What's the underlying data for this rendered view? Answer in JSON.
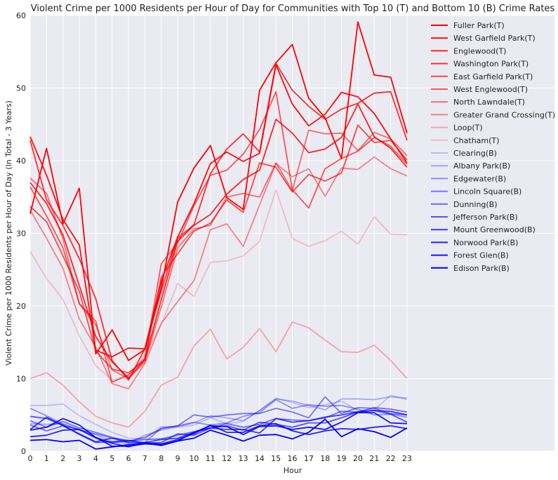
{
  "chart_data": {
    "type": "line",
    "title": "Violent Crime per 1000 Residents per Hour of Day for Communities with Top 10 (T) and Bottom 10 (B) Crime Rates",
    "xlabel": "Hour",
    "ylabel": "Violent Crime per 1000 Residents per Hour of Day (In Total - 3 Years)",
    "xlim": [
      0,
      32
    ],
    "ylim": [
      0,
      60
    ],
    "x": [
      0,
      1,
      2,
      3,
      4,
      5,
      6,
      7,
      8,
      9,
      10,
      11,
      12,
      13,
      14,
      15,
      16,
      17,
      18,
      19,
      20,
      21,
      22,
      23
    ],
    "x_ticks": [
      "0",
      "1",
      "2",
      "3",
      "4",
      "5",
      "6",
      "7",
      "8",
      "9",
      "10",
      "11",
      "12",
      "13",
      "14",
      "15",
      "16",
      "17",
      "18",
      "19",
      "20",
      "21",
      "22",
      "23"
    ],
    "y_ticks": [
      "0",
      "10",
      "20",
      "30",
      "40",
      "50",
      "60"
    ],
    "grid": true,
    "legend_position": "top-right",
    "series": [
      {
        "name": "Fuller Park(T)",
        "color": "#ff0000",
        "opacity": 1.0,
        "values": [
          32.7,
          41.7,
          31.3,
          36.2,
          13.4,
          16.7,
          12.5,
          14.0,
          22.5,
          34.3,
          39.0,
          42.1,
          34.9,
          33.3,
          49.7,
          53.5,
          56.0,
          48.6,
          45.9,
          40.3,
          59.1,
          51.8,
          51.5,
          43.8
        ]
      },
      {
        "name": "West Garfield Park(T)",
        "color": "#ff0000",
        "opacity": 0.95,
        "values": [
          43.3,
          38.0,
          31.9,
          28.4,
          13.9,
          13.0,
          14.2,
          14.1,
          23.4,
          29.5,
          34.1,
          39.6,
          41.2,
          39.9,
          41.0,
          53.2,
          47.8,
          44.8,
          46.4,
          49.4,
          48.8,
          46.5,
          43.0,
          39.7
        ]
      },
      {
        "name": "Englewood(T)",
        "color": "#ff0000",
        "opacity": 0.85,
        "values": [
          37.0,
          34.1,
          29.8,
          22.8,
          15.8,
          12.3,
          10.1,
          12.6,
          20.9,
          28.9,
          31.1,
          32.6,
          35.4,
          37.4,
          38.7,
          45.7,
          43.8,
          41.1,
          41.6,
          43.2,
          47.8,
          43.3,
          41.7,
          39.1
        ]
      },
      {
        "name": "Washington Park(T)",
        "color": "#ff0000",
        "opacity": 0.8,
        "values": [
          42.8,
          34.6,
          31.1,
          26.5,
          21.0,
          12.5,
          9.8,
          14.1,
          22.1,
          29.3,
          31.2,
          38.2,
          41.6,
          43.7,
          41.2,
          53.4,
          49.7,
          47.5,
          45.7,
          47.1,
          47.9,
          49.3,
          49.5,
          42.8
        ]
      },
      {
        "name": "East Garfield Park(T)",
        "color": "#ff0000",
        "opacity": 0.7,
        "values": [
          33.7,
          31.6,
          26.9,
          22.0,
          13.8,
          11.3,
          10.8,
          12.6,
          24.0,
          27.2,
          30.3,
          31.4,
          34.6,
          32.9,
          39.7,
          39.1,
          35.7,
          38.1,
          37.2,
          38.3,
          44.9,
          42.5,
          42.8,
          40.1
        ]
      },
      {
        "name": "West Englewood(T)",
        "color": "#ff0000",
        "opacity": 0.65,
        "values": [
          36.4,
          32.4,
          28.0,
          20.3,
          17.9,
          9.5,
          10.5,
          12.8,
          25.8,
          28.7,
          33.8,
          38.0,
          38.7,
          40.9,
          44.3,
          49.5,
          36.0,
          33.5,
          38.9,
          40.3,
          41.3,
          43.2,
          42.0,
          39.5
        ]
      },
      {
        "name": "North Lawndale(T)",
        "color": "#ff0000",
        "opacity": 0.55,
        "values": [
          37.6,
          35.5,
          29.2,
          20.3,
          17.4,
          11.2,
          10.0,
          12.3,
          19.9,
          28.0,
          30.6,
          31.1,
          35.0,
          35.5,
          35.0,
          39.7,
          35.9,
          44.2,
          43.7,
          43.8,
          41.4,
          43.9,
          43.0,
          40.7
        ]
      },
      {
        "name": "Greater Grand Crossing(T)",
        "color": "#ff0000",
        "opacity": 0.45,
        "values": [
          33.2,
          29.3,
          25.2,
          18.2,
          14.3,
          9.3,
          8.6,
          12.1,
          17.6,
          20.6,
          23.5,
          30.5,
          31.3,
          28.2,
          33.9,
          39.6,
          37.8,
          38.9,
          35.1,
          39.0,
          38.8,
          40.5,
          38.9,
          37.9
        ]
      },
      {
        "name": "Loop(T)",
        "color": "#ff0000",
        "opacity": 0.3,
        "values": [
          10.0,
          10.8,
          9.1,
          6.8,
          4.8,
          3.9,
          3.3,
          5.5,
          9.1,
          10.2,
          14.5,
          16.8,
          12.7,
          14.3,
          16.9,
          13.7,
          17.8,
          17.0,
          15.3,
          13.7,
          13.6,
          14.6,
          12.5,
          10.0
        ]
      },
      {
        "name": "Chatham(T)",
        "color": "#ff0000",
        "opacity": 0.2,
        "values": [
          27.5,
          23.8,
          20.9,
          15.9,
          11.8,
          9.8,
          10.4,
          13.2,
          17.5,
          23.1,
          21.3,
          26.0,
          26.2,
          26.9,
          28.9,
          36.0,
          29.3,
          28.2,
          29.0,
          30.3,
          28.5,
          32.3,
          29.9,
          29.8
        ]
      },
      {
        "name": "Clearing(B)",
        "color": "#0000ff",
        "opacity": 0.2,
        "values": [
          6.3,
          6.3,
          6.5,
          4.9,
          3.7,
          2.6,
          1.8,
          1.7,
          3.4,
          3.3,
          3.6,
          4.6,
          3.8,
          4.1,
          5.6,
          7.3,
          6.7,
          6.0,
          6.4,
          6.9,
          5.6,
          5.7,
          7.7,
          7.1
        ]
      },
      {
        "name": "Albany Park(B)",
        "color": "#0000ff",
        "opacity": 0.3,
        "values": [
          3.8,
          3.7,
          3.8,
          3.0,
          2.3,
          1.3,
          1.1,
          2.2,
          2.9,
          3.4,
          3.9,
          4.9,
          4.6,
          4.2,
          5.6,
          7.2,
          6.9,
          6.3,
          5.7,
          7.2,
          7.2,
          7.1,
          7.5,
          7.3
        ]
      },
      {
        "name": "Edgewater(B)",
        "color": "#0000ff",
        "opacity": 0.4,
        "values": [
          5.9,
          4.9,
          3.7,
          2.9,
          2.4,
          1.8,
          1.5,
          1.2,
          3.2,
          3.5,
          4.0,
          3.6,
          3.9,
          4.8,
          5.3,
          7.1,
          5.9,
          6.4,
          6.2,
          6.3,
          5.8,
          5.0,
          5.1,
          4.7
        ]
      },
      {
        "name": "Lincoln Square(B)",
        "color": "#0000ff",
        "opacity": 0.5,
        "values": [
          4.2,
          3.3,
          4.1,
          3.2,
          2.6,
          1.9,
          1.4,
          1.9,
          3.1,
          3.5,
          5.0,
          4.7,
          5.0,
          5.2,
          5.2,
          5.9,
          5.4,
          4.6,
          7.5,
          5.2,
          6.0,
          5.9,
          5.2,
          5.0
        ]
      },
      {
        "name": "Dunning(B)",
        "color": "#0000ff",
        "opacity": 0.55,
        "values": [
          3.6,
          2.8,
          3.5,
          3.0,
          1.8,
          1.2,
          1.4,
          1.6,
          1.7,
          2.2,
          2.7,
          3.2,
          3.8,
          3.3,
          3.7,
          4.5,
          4.3,
          4.2,
          4.6,
          5.5,
          5.4,
          6.0,
          5.8,
          5.4
        ]
      },
      {
        "name": "Jefferson Park(B)",
        "color": "#0000ff",
        "opacity": 0.65,
        "values": [
          4.8,
          4.5,
          3.6,
          2.3,
          1.2,
          1.3,
          1.5,
          1.1,
          1.2,
          2.4,
          2.2,
          3.2,
          3.5,
          2.9,
          4.0,
          3.7,
          3.3,
          3.9,
          3.9,
          4.6,
          5.4,
          5.6,
          5.1,
          4.0
        ]
      },
      {
        "name": "Mount Greenwood(B)",
        "color": "#0000ff",
        "opacity": 0.75,
        "values": [
          3.0,
          4.7,
          3.5,
          2.4,
          1.3,
          1.8,
          1.2,
          1.2,
          1.6,
          1.8,
          2.6,
          3.2,
          3.0,
          3.0,
          2.5,
          4.5,
          4.0,
          4.2,
          4.7,
          5.0,
          5.4,
          5.6,
          5.5,
          5.0
        ]
      },
      {
        "name": "Norwood Park(B)",
        "color": "#0000ff",
        "opacity": 0.85,
        "values": [
          2.0,
          2.2,
          2.9,
          3.0,
          1.9,
          1.1,
          0.6,
          1.2,
          1.0,
          1.6,
          2.4,
          3.6,
          2.6,
          2.6,
          3.5,
          3.8,
          2.8,
          2.3,
          2.8,
          3.1,
          3.0,
          3.3,
          3.5,
          3.1
        ]
      },
      {
        "name": "Forest Glen(B)",
        "color": "#0000ff",
        "opacity": 0.92,
        "values": [
          2.9,
          3.3,
          4.5,
          3.6,
          1.9,
          0.7,
          0.7,
          1.0,
          0.9,
          1.4,
          2.6,
          3.5,
          3.4,
          2.3,
          3.4,
          3.5,
          3.0,
          3.3,
          3.0,
          4.0,
          5.3,
          5.3,
          3.9,
          3.8
        ]
      },
      {
        "name": "Edison Park(B)",
        "color": "#0000ff",
        "opacity": 1.0,
        "values": [
          1.5,
          1.6,
          1.3,
          1.5,
          0.3,
          0.6,
          0.9,
          1.1,
          0.8,
          1.4,
          1.8,
          2.9,
          2.2,
          1.4,
          2.2,
          2.3,
          1.7,
          2.6,
          4.4,
          2.0,
          3.1,
          2.7,
          1.9,
          3.2
        ]
      }
    ]
  }
}
